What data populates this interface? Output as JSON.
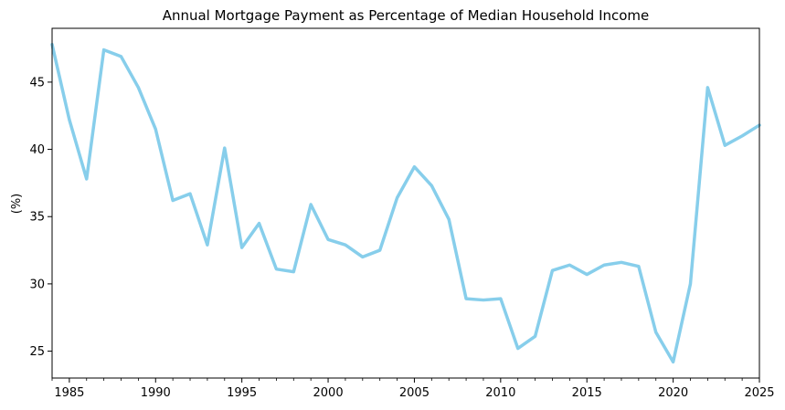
{
  "chart_data": {
    "type": "line",
    "title": "Annual Mortgage Payment as Percentage of Median Household Income",
    "xlabel": "",
    "ylabel": "(%)",
    "xlim": [
      1984,
      2025
    ],
    "ylim": [
      23.0,
      49.0
    ],
    "x_ticks": [
      "1985",
      "1990",
      "1995",
      "2000",
      "2005",
      "2010",
      "2015",
      "2020",
      "2025"
    ],
    "y_ticks": [
      "25",
      "30",
      "35",
      "40",
      "45"
    ],
    "grid": false,
    "legend": "none",
    "line_color": "#87ceeb",
    "series": [
      {
        "x": [
          1984,
          1985,
          1986,
          1987,
          1988,
          1989,
          1990,
          1991,
          1992,
          1993,
          1994,
          1995,
          1996,
          1997,
          1998,
          1999,
          2000,
          2001,
          2002,
          2003,
          2004,
          2005,
          2006,
          2007,
          2008,
          2009,
          2010,
          2011,
          2012,
          2013,
          2014,
          2015,
          2016,
          2017,
          2018,
          2019,
          2020,
          2021,
          2022,
          2023,
          2024,
          2025
        ],
        "values": [
          47.8,
          42.2,
          37.8,
          47.4,
          46.9,
          44.6,
          41.5,
          36.2,
          36.7,
          32.9,
          40.1,
          32.7,
          34.5,
          31.1,
          30.9,
          35.9,
          33.3,
          32.9,
          32.0,
          32.5,
          36.4,
          38.7,
          37.3,
          34.8,
          28.9,
          28.8,
          28.9,
          25.2,
          26.1,
          31.0,
          31.4,
          30.7,
          31.4,
          31.6,
          31.3,
          26.4,
          24.2,
          30.0,
          44.6,
          40.3,
          41.0,
          41.8
        ]
      }
    ]
  }
}
